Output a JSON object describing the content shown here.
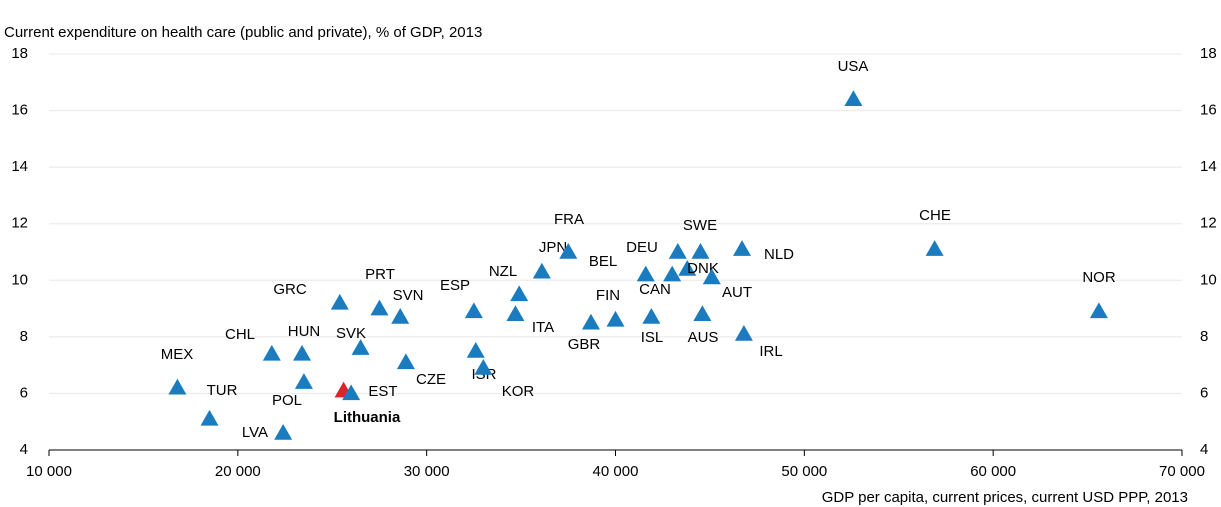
{
  "chart_data": {
    "type": "scatter",
    "title": "Current expenditure on health care (public and private), % of GDP, 2013",
    "x_label": "GDP per capita, current prices, current USD PPP, 2013",
    "points": [
      {
        "label": "USA",
        "x": 52600,
        "y": 16.4,
        "color": "#1a7bbf"
      },
      {
        "label": "CHE",
        "x": 56900,
        "y": 11.1,
        "color": "#1a7bbf"
      },
      {
        "label": "NOR",
        "x": 65600,
        "y": 8.9,
        "color": "#1a7bbf"
      },
      {
        "label": "MEX",
        "x": 16800,
        "y": 6.2,
        "color": "#1a7bbf"
      },
      {
        "label": "TUR",
        "x": 18500,
        "y": 5.1,
        "color": "#1a7bbf"
      },
      {
        "label": "LVA",
        "x": 22400,
        "y": 4.6,
        "color": "#1a7bbf"
      },
      {
        "label": "POL",
        "x": 23500,
        "y": 6.4,
        "color": "#1a7bbf"
      },
      {
        "label": "CHL",
        "x": 21800,
        "y": 7.4,
        "color": "#1a7bbf"
      },
      {
        "label": "HUN",
        "x": 23400,
        "y": 7.4,
        "color": "#1a7bbf"
      },
      {
        "label": "GRC",
        "x": 25400,
        "y": 9.2,
        "color": "#1a7bbf"
      },
      {
        "label": "Lithuania",
        "x": 25600,
        "y": 6.1,
        "color": "#d9262c"
      },
      {
        "label": "EST",
        "x": 26000,
        "y": 6.0,
        "color": "#1a7bbf"
      },
      {
        "label": "SVK",
        "x": 26500,
        "y": 7.6,
        "color": "#1a7bbf"
      },
      {
        "label": "PRT",
        "x": 27500,
        "y": 9.0,
        "color": "#1a7bbf"
      },
      {
        "label": "SVN",
        "x": 28600,
        "y": 8.7,
        "color": "#1a7bbf"
      },
      {
        "label": "CZE",
        "x": 28900,
        "y": 7.1,
        "color": "#1a7bbf"
      },
      {
        "label": "ESP",
        "x": 32500,
        "y": 8.9,
        "color": "#1a7bbf"
      },
      {
        "label": "ISR",
        "x": 32600,
        "y": 7.5,
        "color": "#1a7bbf"
      },
      {
        "label": "KOR",
        "x": 33000,
        "y": 6.9,
        "color": "#1a7bbf"
      },
      {
        "label": "NZL",
        "x": 34900,
        "y": 9.5,
        "color": "#1a7bbf"
      },
      {
        "label": "ITA",
        "x": 34700,
        "y": 8.8,
        "color": "#1a7bbf"
      },
      {
        "label": "JPN",
        "x": 36100,
        "y": 10.3,
        "color": "#1a7bbf"
      },
      {
        "label": "FRA",
        "x": 37500,
        "y": 11.0,
        "color": "#1a7bbf"
      },
      {
        "label": "BEL",
        "x": 41600,
        "y": 10.2,
        "color": "#1a7bbf"
      },
      {
        "label": "GBR",
        "x": 38700,
        "y": 8.5,
        "color": "#1a7bbf"
      },
      {
        "label": "FIN",
        "x": 40000,
        "y": 8.6,
        "color": "#1a7bbf"
      },
      {
        "label": "DEU",
        "x": 43300,
        "y": 11.0,
        "color": "#1a7bbf"
      },
      {
        "label": "CAN",
        "x": 43000,
        "y": 10.2,
        "color": "#1a7bbf"
      },
      {
        "label": "ISL",
        "x": 41900,
        "y": 8.7,
        "color": "#1a7bbf"
      },
      {
        "label": "SWE",
        "x": 44500,
        "y": 11.0,
        "color": "#1a7bbf"
      },
      {
        "label": "DNK",
        "x": 43800,
        "y": 10.4,
        "color": "#1a7bbf"
      },
      {
        "label": "AUT",
        "x": 45100,
        "y": 10.1,
        "color": "#1a7bbf"
      },
      {
        "label": "AUS",
        "x": 44600,
        "y": 8.8,
        "color": "#1a7bbf"
      },
      {
        "label": "NLD",
        "x": 46700,
        "y": 11.1,
        "color": "#1a7bbf"
      },
      {
        "label": "IRL",
        "x": 46800,
        "y": 8.1,
        "color": "#1a7bbf"
      }
    ],
    "xlim": [
      10000,
      70000
    ],
    "xticks": [
      {
        "value": 10000,
        "label": "10 000"
      },
      {
        "value": 20000,
        "label": "20 000"
      },
      {
        "value": 30000,
        "label": "30 000"
      },
      {
        "value": 40000,
        "label": "40 000"
      },
      {
        "value": 50000,
        "label": "50 000"
      },
      {
        "value": 60000,
        "label": "60 000"
      },
      {
        "value": 70000,
        "label": "70 000"
      }
    ],
    "ylim": [
      4,
      18
    ],
    "yticks": [
      4,
      6,
      8,
      10,
      12,
      14,
      16,
      18
    ],
    "grid": true
  }
}
